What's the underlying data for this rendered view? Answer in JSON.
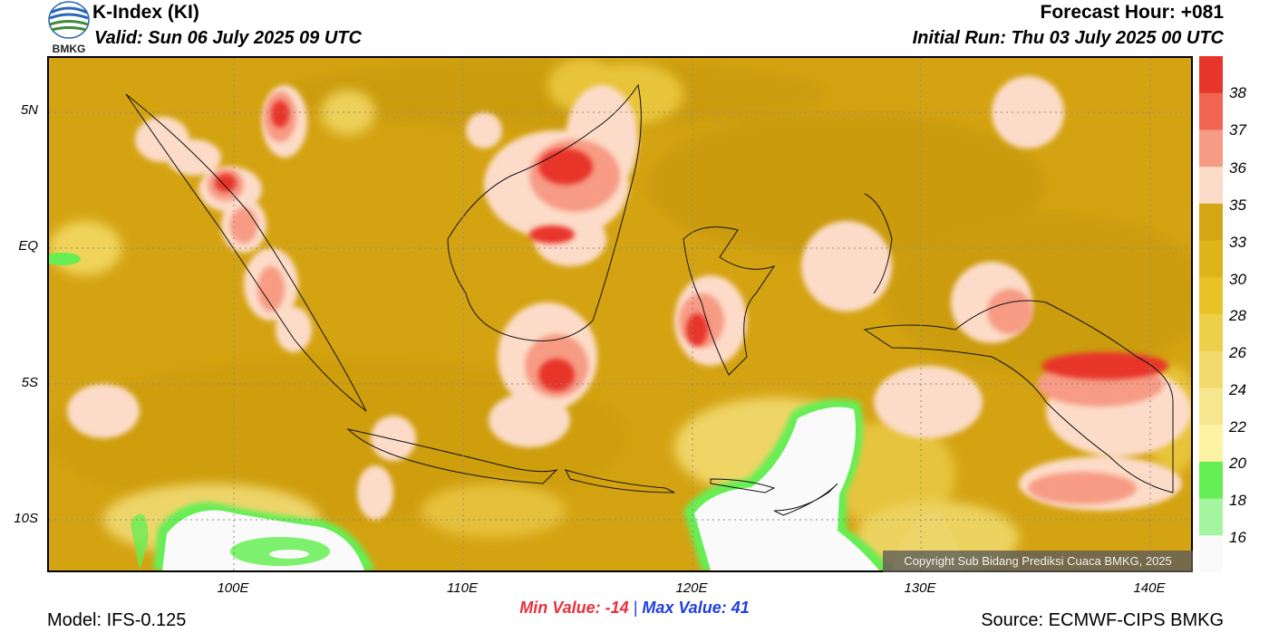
{
  "header": {
    "title": "K-Index (KI)",
    "valid": "Valid: Sun 06 July 2025 09 UTC",
    "forecast_hour": "Forecast Hour: +081",
    "initial_run": "Initial Run: Thu 03 July 2025 00 UTC"
  },
  "logo": {
    "text": "BMKG",
    "icon": "bmkg-logo-icon"
  },
  "axes": {
    "y_labels": [
      "5N",
      "EQ",
      "5S",
      "10S"
    ],
    "x_labels": [
      "100E",
      "110E",
      "120E",
      "130E",
      "140E"
    ]
  },
  "colorbar": {
    "labels": [
      "38",
      "37",
      "36",
      "35",
      "33",
      "30",
      "28",
      "26",
      "24",
      "22",
      "20",
      "18",
      "16"
    ],
    "colors": [
      "#e8352b",
      "#f26552",
      "#f79b84",
      "#fcdcc8",
      "#d6a514",
      "#dfb31a",
      "#e9c325",
      "#edd04a",
      "#f1d96c",
      "#f6e78f",
      "#fef3a2",
      "#66ee55",
      "#a3f5a0",
      "#fafafa"
    ]
  },
  "stats": {
    "min_label": "Min Value:",
    "min_value": "-14",
    "separator": "|",
    "max_label": "Max Value:",
    "max_value": "41"
  },
  "footer": {
    "model": "Model: IFS-0.125",
    "source": "Source: ECMWF-CIPS BMKG",
    "copyright": "Copyright Sub Bidang Prediksi Cuaca BMKG, 2025"
  },
  "colors": {
    "base": "#d8a814",
    "red": "#e8352b",
    "pink": "#fcdcc8",
    "green": "#66ee55",
    "white": "#fafafa"
  }
}
